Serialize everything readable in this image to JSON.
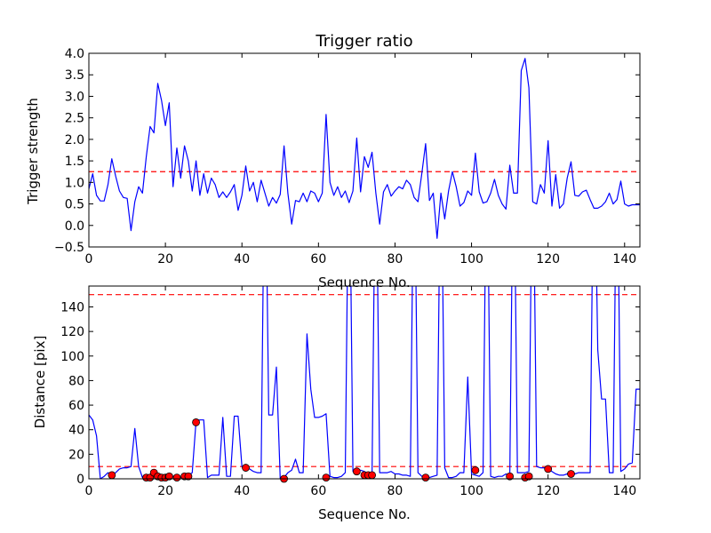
{
  "chart_data": [
    {
      "type": "line",
      "title": "Trigger ratio",
      "xlabel": "Sequence No.",
      "ylabel": "Trigger strength",
      "xlim": [
        0,
        144
      ],
      "ylim": [
        -0.5,
        4.0
      ],
      "xticks": [
        0,
        20,
        40,
        60,
        80,
        100,
        120,
        140
      ],
      "xtick_labels": [
        "0",
        "20",
        "40",
        "60",
        "80",
        "100",
        "120",
        "140"
      ],
      "yticks": [
        -0.5,
        0.0,
        0.5,
        1.0,
        1.5,
        2.0,
        2.5,
        3.0,
        3.5,
        4.0
      ],
      "ytick_labels": [
        "−0.5",
        "0.0",
        "0.5",
        "1.0",
        "1.5",
        "2.0",
        "2.5",
        "3.0",
        "3.5",
        "4.0"
      ],
      "grid": false,
      "colors": {
        "series": "#0000ff",
        "threshold": "#ff0000"
      },
      "series": [
        {
          "x": [
            0,
            1,
            2,
            3,
            4,
            5,
            6,
            7,
            8,
            9,
            10,
            11,
            12,
            13,
            14,
            15,
            16,
            17,
            18,
            19,
            20,
            21,
            22,
            23,
            24,
            25,
            26,
            27,
            28,
            29,
            30,
            31,
            32,
            33,
            34,
            35,
            36,
            37,
            38,
            39,
            40,
            41,
            42,
            43,
            44,
            45,
            46,
            47,
            48,
            49,
            50,
            51,
            52,
            53,
            54,
            55,
            56,
            57,
            58,
            59,
            60,
            61,
            62,
            63,
            64,
            65,
            66,
            67,
            68,
            69,
            70,
            71,
            72,
            73,
            74,
            75,
            76,
            77,
            78,
            79,
            80,
            81,
            82,
            83,
            84,
            85,
            86,
            87,
            88,
            89,
            90,
            91,
            92,
            93,
            94,
            95,
            96,
            97,
            98,
            99,
            100,
            101,
            102,
            103,
            104,
            105,
            106,
            107,
            108,
            109,
            110,
            111,
            112,
            113,
            114,
            115,
            116,
            117,
            118,
            119,
            120,
            121,
            122,
            123,
            124,
            125,
            126,
            127,
            128,
            129,
            130,
            131,
            132,
            133,
            134,
            135,
            136,
            137,
            138,
            139,
            140,
            141,
            142,
            143,
            144
          ],
          "values": [
            0.85,
            1.2,
            0.7,
            0.57,
            0.57,
            0.95,
            1.55,
            1.15,
            0.8,
            0.65,
            0.63,
            -0.12,
            0.55,
            0.9,
            0.75,
            1.6,
            2.3,
            2.15,
            3.3,
            2.9,
            2.32,
            2.85,
            0.9,
            1.8,
            1.1,
            1.85,
            1.5,
            0.8,
            1.5,
            0.7,
            1.2,
            0.75,
            1.1,
            0.95,
            0.65,
            0.78,
            0.65,
            0.78,
            0.95,
            0.35,
            0.7,
            1.38,
            0.8,
            1.0,
            0.55,
            1.05,
            0.75,
            0.45,
            0.65,
            0.52,
            0.72,
            1.85,
            0.75,
            0.03,
            0.58,
            0.55,
            0.75,
            0.55,
            0.8,
            0.75,
            0.55,
            0.75,
            2.58,
            1.0,
            0.7,
            0.9,
            0.65,
            0.8,
            0.53,
            0.8,
            2.03,
            0.78,
            1.6,
            1.35,
            1.7,
            0.75,
            0.03,
            0.78,
            0.95,
            0.68,
            0.8,
            0.9,
            0.85,
            1.05,
            0.95,
            0.65,
            0.55,
            1.2,
            1.9,
            0.58,
            0.75,
            -0.3,
            0.75,
            0.15,
            0.8,
            1.25,
            0.9,
            0.45,
            0.53,
            0.8,
            0.7,
            1.68,
            0.78,
            0.52,
            0.55,
            0.75,
            1.07,
            0.7,
            0.5,
            0.38,
            1.4,
            0.75,
            0.75,
            3.6,
            3.88,
            3.2,
            0.55,
            0.5,
            0.95,
            0.75,
            1.97,
            0.45,
            1.18,
            0.4,
            0.5,
            1.1,
            1.48,
            0.7,
            0.68,
            0.78,
            0.82,
            0.6,
            0.4,
            0.4,
            0.45,
            0.55,
            0.75,
            0.5,
            0.6,
            1.03,
            0.5,
            0.45,
            0.48,
            0.48,
            0.48
          ]
        }
      ],
      "threshold": 1.25
    },
    {
      "type": "line",
      "title": "",
      "xlabel": "Sequence No.",
      "ylabel": "Distance [pix]",
      "xlim": [
        0,
        144
      ],
      "ylim": [
        0,
        157
      ],
      "xticks": [
        0,
        20,
        40,
        60,
        80,
        100,
        120,
        140
      ],
      "xtick_labels": [
        "0",
        "20",
        "40",
        "60",
        "80",
        "100",
        "120",
        "140"
      ],
      "yticks": [
        0,
        20,
        40,
        60,
        80,
        100,
        120,
        140
      ],
      "ytick_labels": [
        "0",
        "20",
        "40",
        "60",
        "80",
        "100",
        "120",
        "140"
      ],
      "grid": false,
      "colors": {
        "series": "#0000ff",
        "threshold": "#ff0000",
        "markers": "#ff0000"
      },
      "series": [
        {
          "x": [
            0,
            1,
            2,
            3,
            4,
            5,
            6,
            7,
            8,
            9,
            10,
            11,
            12,
            13,
            14,
            15,
            16,
            17,
            18,
            19,
            20,
            21,
            22,
            23,
            24,
            25,
            26,
            27,
            28,
            29,
            30,
            31,
            32,
            33,
            34,
            35,
            36,
            37,
            38,
            39,
            40,
            41,
            42,
            43,
            44,
            45,
            46,
            47,
            48,
            49,
            50,
            51,
            52,
            53,
            54,
            55,
            56,
            57,
            58,
            59,
            60,
            61,
            62,
            63,
            64,
            65,
            66,
            67,
            68,
            69,
            70,
            71,
            72,
            73,
            74,
            75,
            76,
            77,
            78,
            79,
            80,
            81,
            82,
            83,
            84,
            85,
            86,
            87,
            88,
            89,
            90,
            91,
            92,
            93,
            94,
            95,
            96,
            97,
            98,
            99,
            100,
            101,
            102,
            103,
            104,
            105,
            106,
            107,
            108,
            109,
            110,
            111,
            112,
            113,
            114,
            115,
            116,
            117,
            118,
            119,
            120,
            121,
            122,
            123,
            124,
            125,
            126,
            127,
            128,
            129,
            130,
            131,
            132,
            133,
            134,
            135,
            136,
            137,
            138,
            139,
            140,
            141,
            142,
            143,
            144
          ],
          "values": [
            52,
            48,
            35,
            0,
            2,
            5,
            3,
            5,
            8,
            9,
            9,
            10,
            41,
            10,
            1,
            2,
            3,
            3,
            1,
            2,
            2,
            1,
            2,
            1,
            1,
            2,
            3,
            5,
            47,
            48,
            48,
            1,
            3,
            3,
            3,
            50,
            2,
            2,
            51,
            51,
            10,
            9,
            8,
            6,
            5,
            5,
            300,
            52,
            52,
            91,
            0,
            1,
            5,
            7,
            16,
            5,
            5,
            118,
            73,
            50,
            50,
            51,
            53,
            2,
            1,
            1,
            2,
            5,
            300,
            6,
            7,
            7,
            6,
            3,
            3,
            300,
            5,
            5,
            5,
            6,
            4,
            4,
            3,
            3,
            2,
            300,
            5,
            2,
            2,
            1,
            2,
            3,
            300,
            9,
            1,
            1,
            2,
            5,
            5,
            83,
            4,
            3,
            2,
            5,
            300,
            2,
            1,
            2,
            2,
            4,
            2,
            300,
            5,
            5,
            5,
            6,
            300,
            10,
            9,
            9,
            8,
            6,
            4,
            3,
            3,
            4,
            4,
            4,
            5,
            5,
            5,
            5,
            300,
            105,
            65,
            65,
            5,
            5,
            300,
            6,
            8,
            12,
            13,
            73,
            73
          ]
        }
      ],
      "markers": {
        "x": [
          6,
          15,
          16,
          17,
          18,
          19,
          20,
          21,
          23,
          25,
          26,
          28,
          41,
          51,
          62,
          70,
          72,
          73,
          74,
          88,
          101,
          110,
          114,
          115,
          120,
          126
        ],
        "values": [
          3,
          1,
          1,
          5,
          2,
          1,
          1,
          2,
          1,
          2,
          2,
          46,
          9,
          0,
          1,
          6,
          3,
          3,
          3,
          1,
          7,
          2,
          1,
          2,
          8,
          4
        ]
      },
      "thresholds": [
        150,
        10
      ]
    }
  ]
}
